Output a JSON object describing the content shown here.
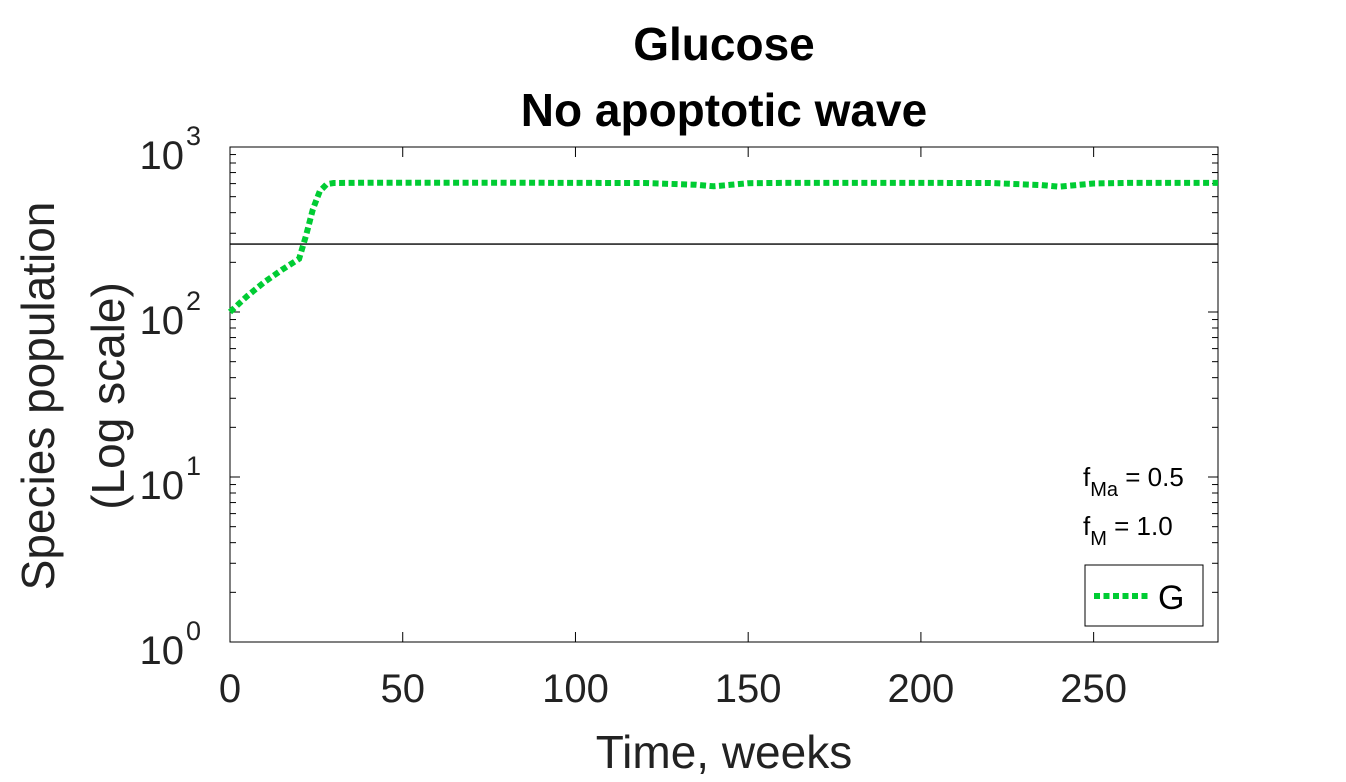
{
  "chart_data": {
    "type": "line",
    "title": [
      "Glucose",
      "No apoptotic wave"
    ],
    "xlabel": "Time, weeks",
    "ylabel": [
      "Species population",
      "(Log scale)"
    ],
    "yscale": "log",
    "xlim": [
      0,
      286
    ],
    "ylim": [
      1,
      1000
    ],
    "x_ticks": [
      0,
      50,
      100,
      150,
      200,
      250
    ],
    "y_ticks": [
      {
        "value": 1,
        "base": "10",
        "exp": "0"
      },
      {
        "value": 10,
        "base": "10",
        "exp": "1"
      },
      {
        "value": 100,
        "base": "10",
        "exp": "2"
      },
      {
        "value": 1000,
        "base": "10",
        "exp": "3"
      }
    ],
    "reference_line": {
      "y": 258,
      "color": "#000000"
    },
    "series": [
      {
        "name": "G",
        "color": "#00cc33",
        "style": "dotted",
        "x": [
          0,
          5,
          10,
          15,
          20,
          22,
          24,
          26,
          28,
          30,
          40,
          60,
          80,
          100,
          120,
          135,
          140,
          145,
          150,
          160,
          180,
          200,
          220,
          235,
          240,
          245,
          250,
          260,
          286
        ],
        "y": [
          100,
          125,
          152,
          180,
          210,
          290,
          420,
          540,
          595,
          605,
          608,
          608,
          608,
          606,
          605,
          590,
          578,
          590,
          603,
          606,
          606,
          606,
          605,
          588,
          575,
          588,
          601,
          606,
          606
        ]
      }
    ],
    "annotations": [
      {
        "base": "f",
        "sub": "Ma",
        "rest": " = 0.5"
      },
      {
        "base": "f",
        "sub": "M",
        "rest": " = 1.0"
      }
    ],
    "legend": {
      "position": "bottom-right",
      "label": "G"
    }
  }
}
